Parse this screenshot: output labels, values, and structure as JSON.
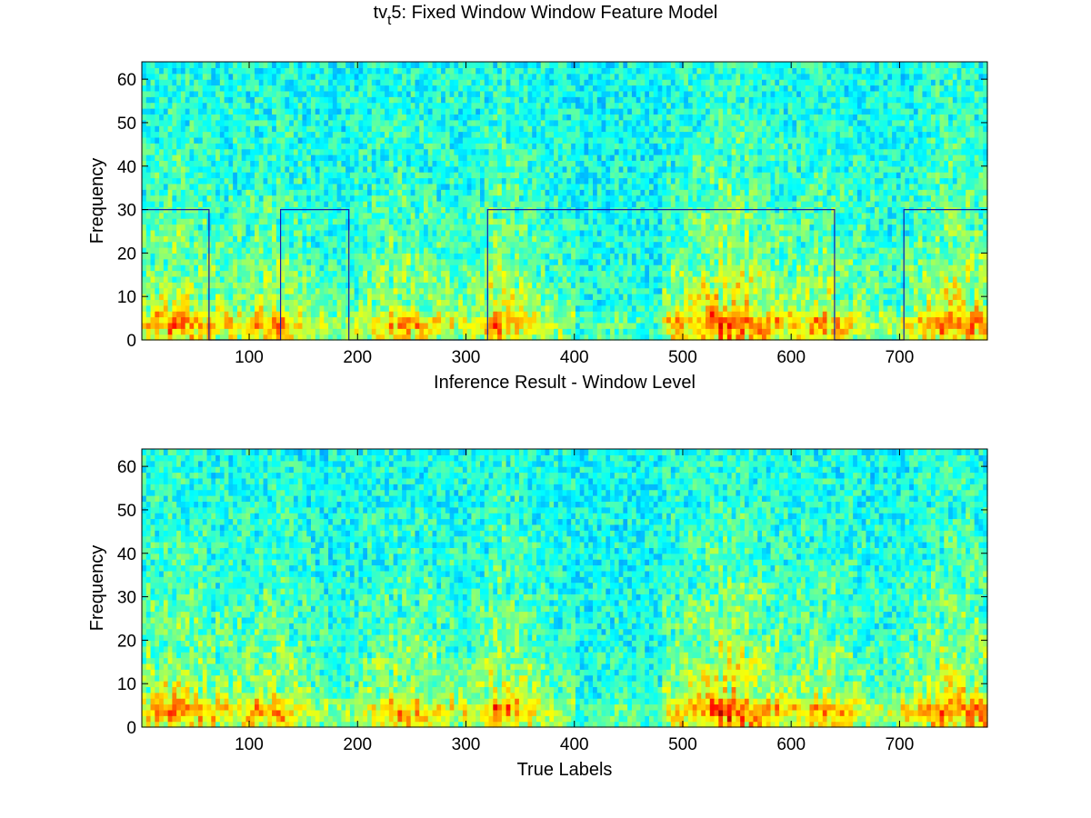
{
  "figure": {
    "title_main": "tv",
    "title_sub": "t",
    "title_rest": "5: Fixed Window Window Feature Model"
  },
  "colors": {
    "colormap": "jet",
    "overlay_line": "#1a1aa8",
    "axes": "#000000",
    "background": "#ffffff"
  },
  "chart_data": [
    {
      "type": "heatmap",
      "name": "inference",
      "title": "",
      "xlabel": "Inference Result - Window Level",
      "ylabel": "Frequency",
      "xlim": [
        1,
        781
      ],
      "ylim": [
        0,
        64
      ],
      "xticks": [
        100,
        200,
        300,
        400,
        500,
        600,
        700
      ],
      "xtick_labels": [
        "100",
        "200",
        "300",
        "400",
        "500",
        "600",
        "700"
      ],
      "yticks": [
        0,
        10,
        20,
        30,
        40,
        50,
        60
      ],
      "ytick_labels": [
        "0",
        "10",
        "20",
        "30",
        "40",
        "50",
        "60"
      ],
      "colormap": "jet",
      "grid": false,
      "overlay": {
        "type": "step",
        "low": 0,
        "high": 30,
        "high_segments": [
          [
            1,
            63
          ],
          [
            129,
            192
          ],
          [
            320,
            640
          ],
          [
            704,
            781
          ]
        ]
      }
    },
    {
      "type": "heatmap",
      "name": "true",
      "title": "",
      "xlabel": "True Labels",
      "ylabel": "Frequency",
      "xlim": [
        1,
        781
      ],
      "ylim": [
        0,
        64
      ],
      "xticks": [
        100,
        200,
        300,
        400,
        500,
        600,
        700
      ],
      "xtick_labels": [
        "100",
        "200",
        "300",
        "400",
        "500",
        "600",
        "700"
      ],
      "yticks": [
        0,
        10,
        20,
        30,
        40,
        50,
        60
      ],
      "ytick_labels": [
        "0",
        "10",
        "20",
        "30",
        "40",
        "50",
        "60"
      ],
      "colormap": "jet",
      "grid": false
    }
  ]
}
